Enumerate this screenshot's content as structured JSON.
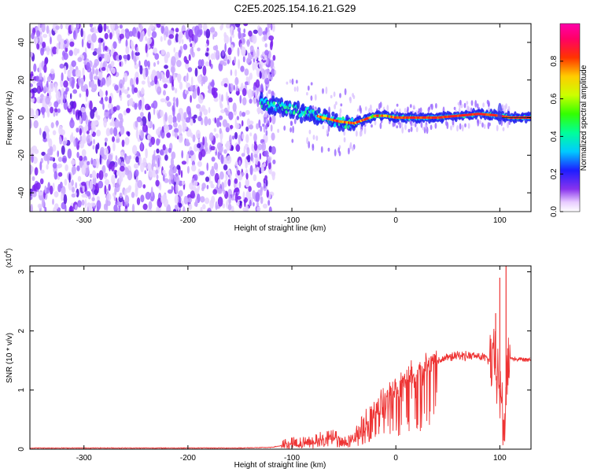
{
  "title": "C2E5.2025.154.16.21.G29",
  "chart_data": [
    {
      "type": "heatmap",
      "xlabel": "Height of straight line (km)",
      "ylabel": "Frequency (Hz)",
      "xlim": [
        -352,
        130
      ],
      "ylim": [
        -50,
        50
      ],
      "xticks": [
        -300,
        -200,
        -100,
        0,
        100
      ],
      "yticks": [
        -40,
        -20,
        0,
        20,
        40
      ],
      "noise_region_x": [
        -352,
        -125
      ],
      "signal_track": {
        "x": [
          -130,
          -110,
          -90,
          -70,
          -55,
          -40,
          -30,
          -20,
          -10,
          0,
          20,
          40,
          60,
          80,
          100,
          110,
          130
        ],
        "frequency_hz": [
          8,
          6,
          3,
          0,
          -2,
          -3,
          -1,
          1,
          1,
          0,
          0,
          0,
          1,
          2,
          1,
          0,
          0
        ]
      },
      "colorbar": {
        "label": "Normalized spectral amplitude",
        "range": [
          0,
          1
        ],
        "ticks": [
          0,
          0.2,
          0.4,
          0.6,
          0.8
        ],
        "tick_labels": [
          "0.0",
          "0.2",
          "0.4",
          "0.6",
          "0.8"
        ],
        "colormap": "rainbow (white to violet to blue to cyan to green to yellow to red to magenta)"
      }
    },
    {
      "type": "line",
      "xlabel": "Height of straight line (km)",
      "ylabel": "SNR (10 * v/v)",
      "y_multiplier": "(x10^4)",
      "xlim": [
        -352,
        130
      ],
      "ylim": [
        0,
        3.1
      ],
      "xticks": [
        -300,
        -200,
        -100,
        0,
        100
      ],
      "yticks": [
        0,
        1,
        2,
        3
      ],
      "line_color": "#ee3333",
      "series": [
        {
          "x": [
            -352,
            -300,
            -250,
            -200,
            -150,
            -120,
            -110,
            -100,
            -90,
            -80,
            -70,
            -60,
            -50,
            -45,
            -40,
            -35,
            -30,
            -25,
            -20,
            -15,
            -10,
            -5,
            0,
            5,
            10,
            20,
            30,
            40,
            50,
            60,
            70,
            80,
            85,
            90,
            95,
            98,
            100,
            102,
            104,
            106,
            108,
            110,
            115,
            120,
            130
          ],
          "values": [
            0.02,
            0.02,
            0.02,
            0.02,
            0.02,
            0.03,
            0.06,
            0.12,
            0.1,
            0.15,
            0.18,
            0.22,
            0.12,
            0.15,
            0.22,
            0.28,
            0.45,
            0.55,
            0.65,
            0.75,
            0.85,
            0.95,
            1.05,
            1.12,
            1.2,
            1.3,
            1.42,
            1.5,
            1.55,
            1.58,
            1.58,
            1.57,
            1.55,
            1.5,
            1.45,
            1.2,
            1.05,
            0.7,
            0.3,
            0.9,
            1.5,
            1.55,
            1.52,
            1.52,
            1.52
          ],
          "spikes": [
            {
              "x": 100,
              "value": 2.9
            },
            {
              "x": 106,
              "value": 3.1
            },
            {
              "x": 103,
              "value": 0.15
            },
            {
              "x": 96,
              "value": 2.3
            }
          ]
        }
      ]
    }
  ]
}
